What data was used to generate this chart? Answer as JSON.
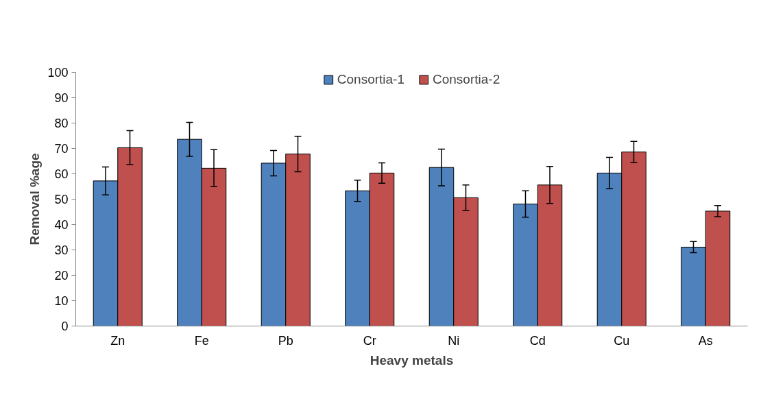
{
  "chart_data": {
    "type": "bar",
    "xlabel": "Heavy metals",
    "ylabel": "Removal %age",
    "categories": [
      "Zn",
      "Fe",
      "Pb",
      "Cr",
      "Ni",
      "Cd",
      "Cu",
      "As"
    ],
    "series": [
      {
        "name": "Consortia-1",
        "color": "#4f81bd",
        "values": [
          57.2,
          73.6,
          64.2,
          53.3,
          62.5,
          48.1,
          60.3,
          31.1
        ],
        "errors": [
          5.5,
          6.7,
          5,
          4.2,
          7.2,
          5.2,
          6.2,
          2.2
        ]
      },
      {
        "name": "Consortia-2",
        "color": "#c0504d",
        "values": [
          70.3,
          62.2,
          67.8,
          60.3,
          50.6,
          55.6,
          68.6,
          45.3
        ],
        "errors": [
          6.7,
          7.3,
          7,
          4,
          5,
          7.3,
          4.2,
          2.2
        ]
      }
    ],
    "ylim": [
      0,
      100
    ],
    "yticks": [
      0,
      10,
      20,
      30,
      40,
      50,
      60,
      70,
      80,
      90,
      100
    ],
    "grid": false,
    "legend": "top"
  }
}
